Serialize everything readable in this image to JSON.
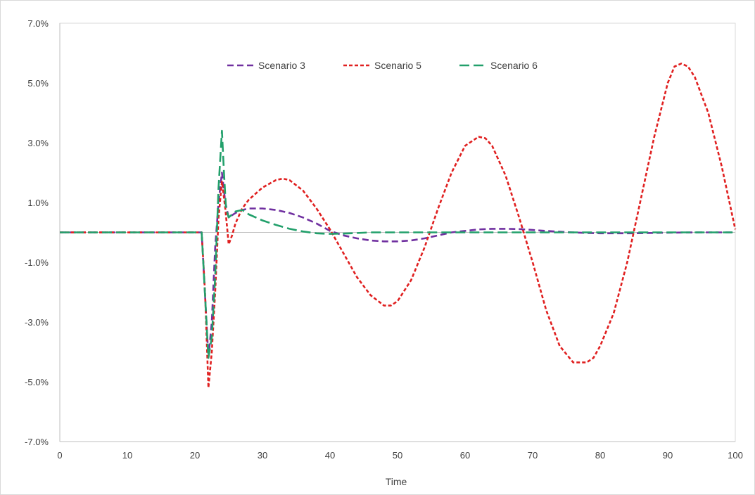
{
  "chart_data": {
    "type": "line",
    "title": "",
    "xlabel": "Time",
    "ylabel": "",
    "xlim": [
      0,
      100
    ],
    "ylim": [
      -0.07,
      0.07
    ],
    "x_ticks": [
      0,
      10,
      20,
      30,
      40,
      50,
      60,
      70,
      80,
      90,
      100
    ],
    "x_tick_labels": [
      "0",
      "10",
      "20",
      "30",
      "40",
      "50",
      "60",
      "70",
      "80",
      "90",
      "100"
    ],
    "y_ticks": [
      0.07,
      0.05,
      0.03,
      0.01,
      -0.01,
      -0.03,
      -0.05,
      -0.07
    ],
    "y_tick_labels": [
      "7.0%",
      "5.0%",
      "3.0%",
      "1.0%",
      "-1.0%",
      "-3.0%",
      "-5.0%",
      "-7.0%"
    ],
    "grid": false,
    "legend_position": "top-center",
    "series": [
      {
        "name": "Scenario 3",
        "color": "#7030a0",
        "dash": "dashed",
        "x": [
          0,
          20,
          21,
          22,
          22.5,
          23,
          23.5,
          24,
          24.5,
          25,
          26,
          27,
          28,
          30,
          32,
          34,
          36,
          38,
          40,
          42,
          44,
          46,
          48,
          50,
          52,
          54,
          56,
          58,
          60,
          62,
          64,
          66,
          68,
          70,
          72,
          74,
          76,
          78,
          80,
          85,
          90,
          95,
          100
        ],
        "y": [
          0,
          0,
          0,
          -0.042,
          -0.03,
          -0.005,
          0.01,
          0.02,
          0.01,
          0.005,
          0.0065,
          0.0075,
          0.008,
          0.008,
          0.0075,
          0.0065,
          0.005,
          0.003,
          0.0005,
          -0.001,
          -0.002,
          -0.0027,
          -0.003,
          -0.003,
          -0.0027,
          -0.002,
          -0.001,
          0,
          0.0005,
          0.001,
          0.0012,
          0.0012,
          0.0011,
          0.0008,
          0.0005,
          0.0002,
          0,
          -0.0002,
          -0.0003,
          -0.0003,
          -0.0001,
          0,
          0
        ]
      },
      {
        "name": "Scenario 5",
        "color": "#e02020",
        "dash": "dotted",
        "x": [
          0,
          20,
          21,
          21.5,
          22,
          22.5,
          23,
          23.5,
          24,
          24.5,
          25,
          25.5,
          26,
          27,
          28,
          30,
          32,
          33,
          34,
          36,
          38,
          40,
          42,
          44,
          46,
          48,
          49,
          50,
          52,
          54,
          56,
          58,
          60,
          62,
          63,
          64,
          66,
          68,
          70,
          72,
          74,
          76,
          78,
          79,
          80,
          82,
          84,
          86,
          88,
          90,
          91,
          92,
          93,
          94,
          96,
          98,
          100
        ],
        "y": [
          0,
          0,
          0,
          -0.02,
          -0.052,
          -0.04,
          -0.02,
          0.005,
          0.017,
          0.008,
          -0.004,
          -0.001,
          0.003,
          0.008,
          0.011,
          0.015,
          0.0175,
          0.018,
          0.0175,
          0.014,
          0.008,
          0.001,
          -0.007,
          -0.015,
          -0.021,
          -0.0245,
          -0.0245,
          -0.023,
          -0.016,
          -0.005,
          0.008,
          0.02,
          0.029,
          0.032,
          0.0315,
          0.029,
          0.019,
          0.005,
          -0.01,
          -0.026,
          -0.038,
          -0.0435,
          -0.0435,
          -0.042,
          -0.038,
          -0.027,
          -0.01,
          0.011,
          0.032,
          0.05,
          0.0555,
          0.0565,
          0.0555,
          0.052,
          0.04,
          0.022,
          0.001
        ]
      },
      {
        "name": "Scenario 6",
        "color": "#22a06b",
        "dash": "long-dash",
        "x": [
          0,
          20,
          21,
          22,
          22.5,
          23,
          23.5,
          24,
          24.3,
          24.6,
          25,
          26,
          27,
          28,
          30,
          32,
          34,
          36,
          38,
          40,
          42,
          44,
          46,
          48,
          50,
          55,
          60,
          65,
          70,
          75,
          80,
          85,
          90,
          95,
          100
        ],
        "y": [
          0,
          0,
          0,
          -0.042,
          -0.035,
          -0.015,
          0.015,
          0.034,
          0.02,
          0.008,
          0.005,
          0.007,
          0.0075,
          0.006,
          0.004,
          0.0025,
          0.0012,
          0.0003,
          -0.0003,
          -0.0005,
          -0.0004,
          -0.0002,
          0,
          0,
          0,
          0,
          0,
          0,
          0,
          0,
          0,
          0,
          0,
          0,
          0
        ]
      }
    ]
  }
}
